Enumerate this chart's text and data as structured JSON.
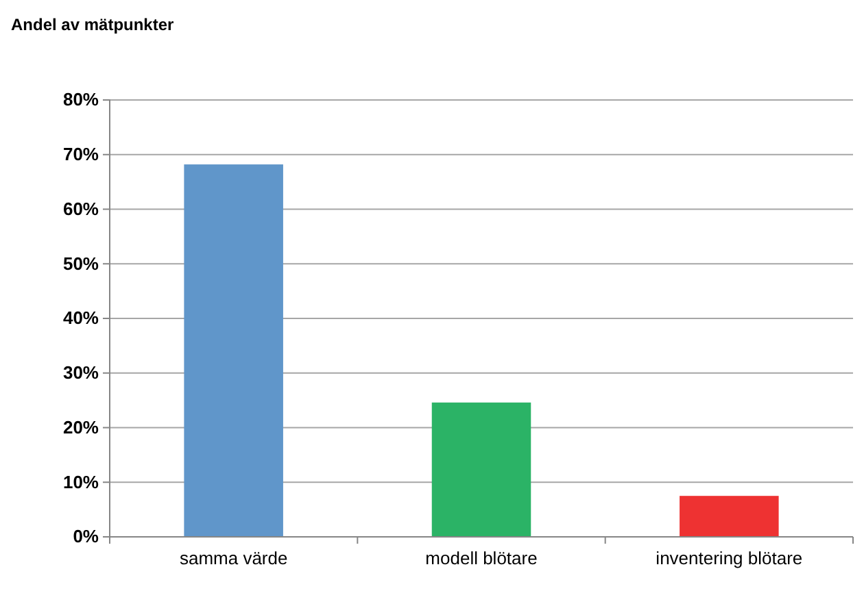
{
  "chart_data": {
    "type": "bar",
    "title": "Andel av mätpunkter",
    "categories": [
      "samma värde",
      "modell blötare",
      "inventering blötare"
    ],
    "values": [
      68.2,
      24.6,
      7.5
    ],
    "colors": [
      "#6096ca",
      "#2bb366",
      "#ee3232"
    ],
    "ylim": [
      0,
      80
    ],
    "yticks": [
      {
        "value": 0,
        "label": "0%"
      },
      {
        "value": 10,
        "label": "10%"
      },
      {
        "value": 20,
        "label": "20%"
      },
      {
        "value": 30,
        "label": "30%"
      },
      {
        "value": 40,
        "label": "40%"
      },
      {
        "value": 50,
        "label": "50%"
      },
      {
        "value": 60,
        "label": "60%"
      },
      {
        "value": 70,
        "label": "70%"
      },
      {
        "value": 80,
        "label": "80%"
      }
    ],
    "grid": "y",
    "legend": false
  }
}
